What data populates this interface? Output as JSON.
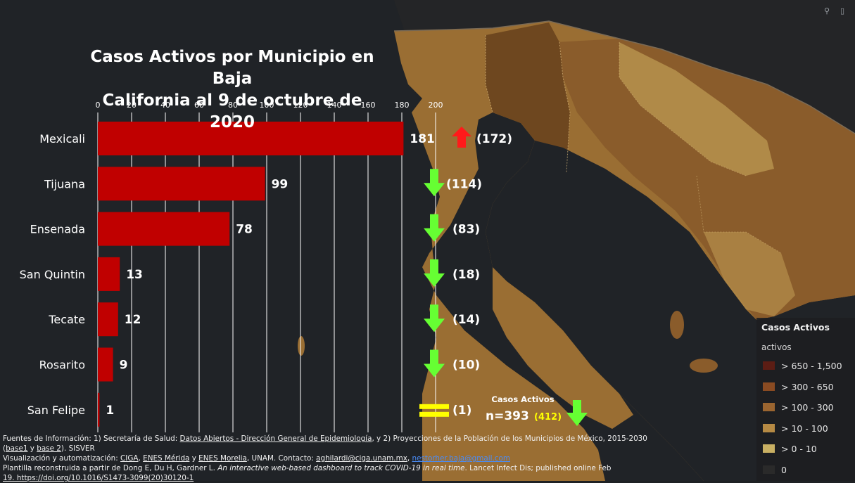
{
  "chart_data": {
    "type": "bar",
    "orientation": "horizontal",
    "title": "Casos Activos por Municipio en Baja California al 9 de octubre de 2020",
    "title_lines": [
      "Casos Activos por Municipio en Baja",
      "California al 9 de octubre de 2020"
    ],
    "categories": [
      "Mexicali",
      "Tijuana",
      "Ensenada",
      "San Quintin",
      "Tecate",
      "Rosarito",
      "San Felipe"
    ],
    "values": [
      181,
      99,
      78,
      13,
      12,
      9,
      1
    ],
    "previous_values": [
      172,
      114,
      83,
      18,
      14,
      10,
      1
    ],
    "previous_labels": [
      "(172)",
      "(114)",
      "(83)",
      "(18)",
      "(14)",
      "(10)",
      "(1)"
    ],
    "trend": [
      "up",
      "down",
      "down",
      "down",
      "down",
      "down",
      "equal"
    ],
    "xlim": [
      0,
      200
    ],
    "xticks": [
      0,
      20,
      40,
      60,
      80,
      100,
      120,
      140,
      160,
      180,
      200
    ],
    "x_axis_position": "top",
    "grid": true,
    "bar_color": "#c00000",
    "up_color": "#ff1a1a",
    "down_color": "#66ff33",
    "equal_color": "#ffff00",
    "total": {
      "label": "Casos Activos",
      "value_text": "n=393",
      "previous_text": "(412)",
      "previous_color": "#ffff00",
      "trend": "down"
    }
  },
  "map": {
    "legend": {
      "title": "Casos Activos",
      "subtitle": "activos",
      "items": [
        {
          "label": "> 650 - 1,500",
          "color": "#5c1d14"
        },
        {
          "label": "> 300 - 650",
          "color": "#8a4b22"
        },
        {
          "label": "> 100 - 300",
          "color": "#9b6530"
        },
        {
          "label": "> 10 - 100",
          "color": "#b68a44"
        },
        {
          "label": "> 0 - 10",
          "color": "#c9b063"
        },
        {
          "label": "0",
          "color": "#2a2a2a"
        }
      ]
    },
    "colors": {
      "background": "#1e2124",
      "ocean": "#202327",
      "land_light": "#9a6e33",
      "land_medium": "#8a5c2b",
      "land_dark": "#6e471f",
      "land_pale": "#b08a48",
      "border": "#d8b87a"
    },
    "tool_icons": [
      "search-icon",
      "bookmark-icon"
    ],
    "tool_glyphs": [
      "⚲",
      "▯"
    ]
  },
  "footer": {
    "line1_a": "Fuentes de Información: 1) Secretaría de Salud: ",
    "line1_link": "Datos Abiertos - Dirección General de Epidemiología",
    "line1_b": ", y 2) Proyecciones de la Población de los Municipios de México, 2015-2030",
    "line2_open": "(",
    "line2_base1": "base1",
    "line2_y": " y ",
    "line2_base2": "base 2",
    "line2_rest": "). SISVER",
    "line3_a": " Visualización y automatización: ",
    "line3_ciga": "CIGA",
    "line3_sep1": ", ",
    "line3_merida": "ENES Mérida",
    "line3_y": " y ",
    "line3_morelia": "ENES Morelia",
    "line3_b": ", UNAM. Contacto: ",
    "line3_email1": "aghilardi@ciga.unam.mx",
    "line3_sep2": ", ",
    "line3_email2": "nestorher.baja@gmail.com",
    "line4_a": " Plantilla reconstruida a partir de Dong E, Du H, Gardner L. ",
    "line4_italic": "An interactive web-based dashboard to track COVID-19 in real time",
    "line4_b": ". Lancet Infect Dis; published online Feb",
    "line5": "19. https://doi.org/10.1016/S1473-3099(20)30120-1"
  }
}
